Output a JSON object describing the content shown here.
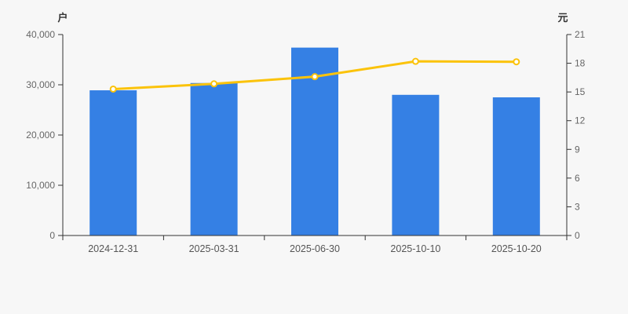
{
  "page": {
    "background_color": "#f7f7f7",
    "axis_line_color": "#333333",
    "tick_label_color": "#666666",
    "date_label_color": "#555555"
  },
  "chart_data": {
    "type": "bar",
    "title": "",
    "categories": [
      "2024-12-31",
      "2025-03-31",
      "2025-06-30",
      "2025-10-10",
      "2025-10-20"
    ],
    "series": [
      {
        "name": "户",
        "type": "bar",
        "axis": "left",
        "values": [
          28900,
          30350,
          37400,
          28000,
          27500
        ],
        "color": "#3580e4"
      },
      {
        "name": "元",
        "type": "line",
        "axis": "right",
        "values": [
          15.3,
          15.85,
          16.6,
          18.2,
          18.15
        ],
        "color": "#fbc30b",
        "marker_fill": "#ffffff"
      }
    ],
    "axes": {
      "left": {
        "title": "户",
        "min": 0,
        "max": 40000,
        "tick_step": 10000,
        "tick_labels": [
          "0",
          "10,000",
          "20,000",
          "30,000",
          "40,000"
        ]
      },
      "right": {
        "title": "元",
        "min": 0,
        "max": 21,
        "tick_step": 3,
        "tick_labels": [
          "0",
          "3",
          "6",
          "9",
          "12",
          "15",
          "18",
          "21"
        ]
      }
    },
    "layout": {
      "grid": false,
      "legend": false
    }
  }
}
